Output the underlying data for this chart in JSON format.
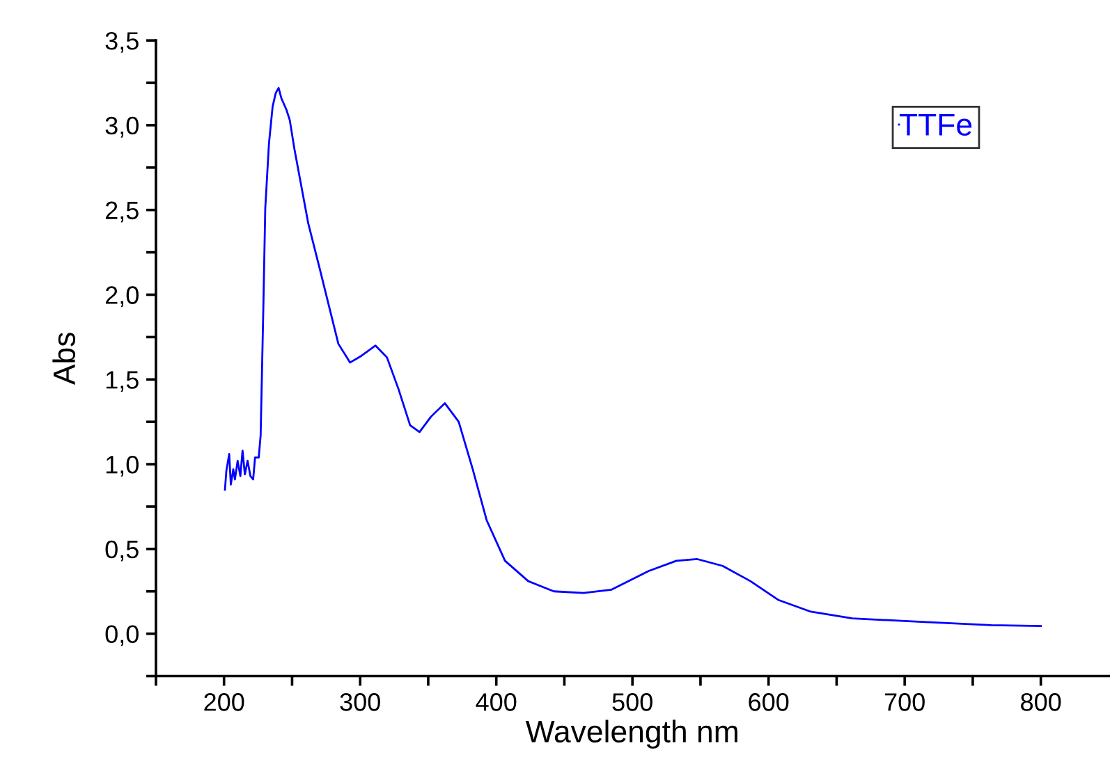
{
  "chart_data": {
    "type": "line",
    "xlabel": "Wavelength nm",
    "ylabel": "Abs",
    "legend": "top right",
    "grid": false,
    "xlim": [
      150,
      850
    ],
    "ylim": [
      -0.25,
      3.5
    ],
    "xticks": [
      {
        "value": 150,
        "label": null
      },
      200,
      {
        "value": 250,
        "label": null
      },
      300,
      {
        "value": 350,
        "label": null
      },
      400,
      {
        "value": 450,
        "label": null
      },
      500,
      {
        "value": 550,
        "label": null
      },
      600,
      {
        "value": 650,
        "label": null
      },
      700,
      {
        "value": 750,
        "label": null
      },
      800
    ],
    "yticks": [
      {
        "value": -0.25,
        "label": null
      },
      {
        "value": 0,
        "label": "0,0"
      },
      {
        "value": 0.25,
        "label": null
      },
      {
        "value": 0.5,
        "label": "0,5"
      },
      {
        "value": 0.75,
        "label": null
      },
      {
        "value": 1,
        "label": "1,0"
      },
      {
        "value": 1.25,
        "label": null
      },
      {
        "value": 1.5,
        "label": "1,5"
      },
      {
        "value": 1.75,
        "label": null
      },
      {
        "value": 2,
        "label": "2,0"
      },
      {
        "value": 2.25,
        "label": null
      },
      {
        "value": 2.5,
        "label": "2,5"
      },
      {
        "value": 2.75,
        "label": null
      },
      {
        "value": 3,
        "label": "3,0"
      },
      {
        "value": 3.25,
        "label": null
      },
      {
        "value": 3.5,
        "label": "3,5"
      }
    ],
    "series": [
      {
        "name": "TTFe",
        "color": "#0000ff",
        "x": [
          200.7,
          201.7,
          203.8,
          205,
          206.8,
          208,
          210,
          212,
          213.6,
          215.3,
          217.3,
          219.4,
          221.4,
          222.8,
          225.5,
          226.9,
          228.9,
          230.3,
          233,
          235.7,
          238,
          240.1,
          242.1,
          245.9,
          248.3,
          251.7,
          256.1,
          261.9,
          270.4,
          277.2,
          284,
          292.6,
          301,
          311.2,
          319.7,
          328.3,
          336.7,
          343.6,
          352,
          362.2,
          372.4,
          382.7,
          392.9,
          406.4,
          423.5,
          442.2,
          464,
          484.7,
          512,
          532.3,
          547.7,
          566.3,
          586.7,
          607,
          631,
          661.5,
          712.6,
          763.6,
          800
        ],
        "values": [
          0.85,
          0.96,
          1.06,
          0.88,
          0.97,
          0.91,
          1.02,
          0.93,
          1.08,
          0.94,
          1.02,
          0.93,
          0.91,
          1.04,
          1.04,
          1.17,
          1.93,
          2.51,
          2.89,
          3.11,
          3.19,
          3.22,
          3.16,
          3.09,
          3.03,
          2.86,
          2.67,
          2.42,
          2.15,
          1.93,
          1.71,
          1.6,
          1.64,
          1.7,
          1.63,
          1.44,
          1.23,
          1.19,
          1.28,
          1.36,
          1.25,
          0.97,
          0.67,
          0.43,
          0.31,
          0.25,
          0.24,
          0.26,
          0.37,
          0.43,
          0.44,
          0.4,
          0.31,
          0.2,
          0.13,
          0.09,
          0.07,
          0.05,
          0.045
        ]
      }
    ]
  }
}
